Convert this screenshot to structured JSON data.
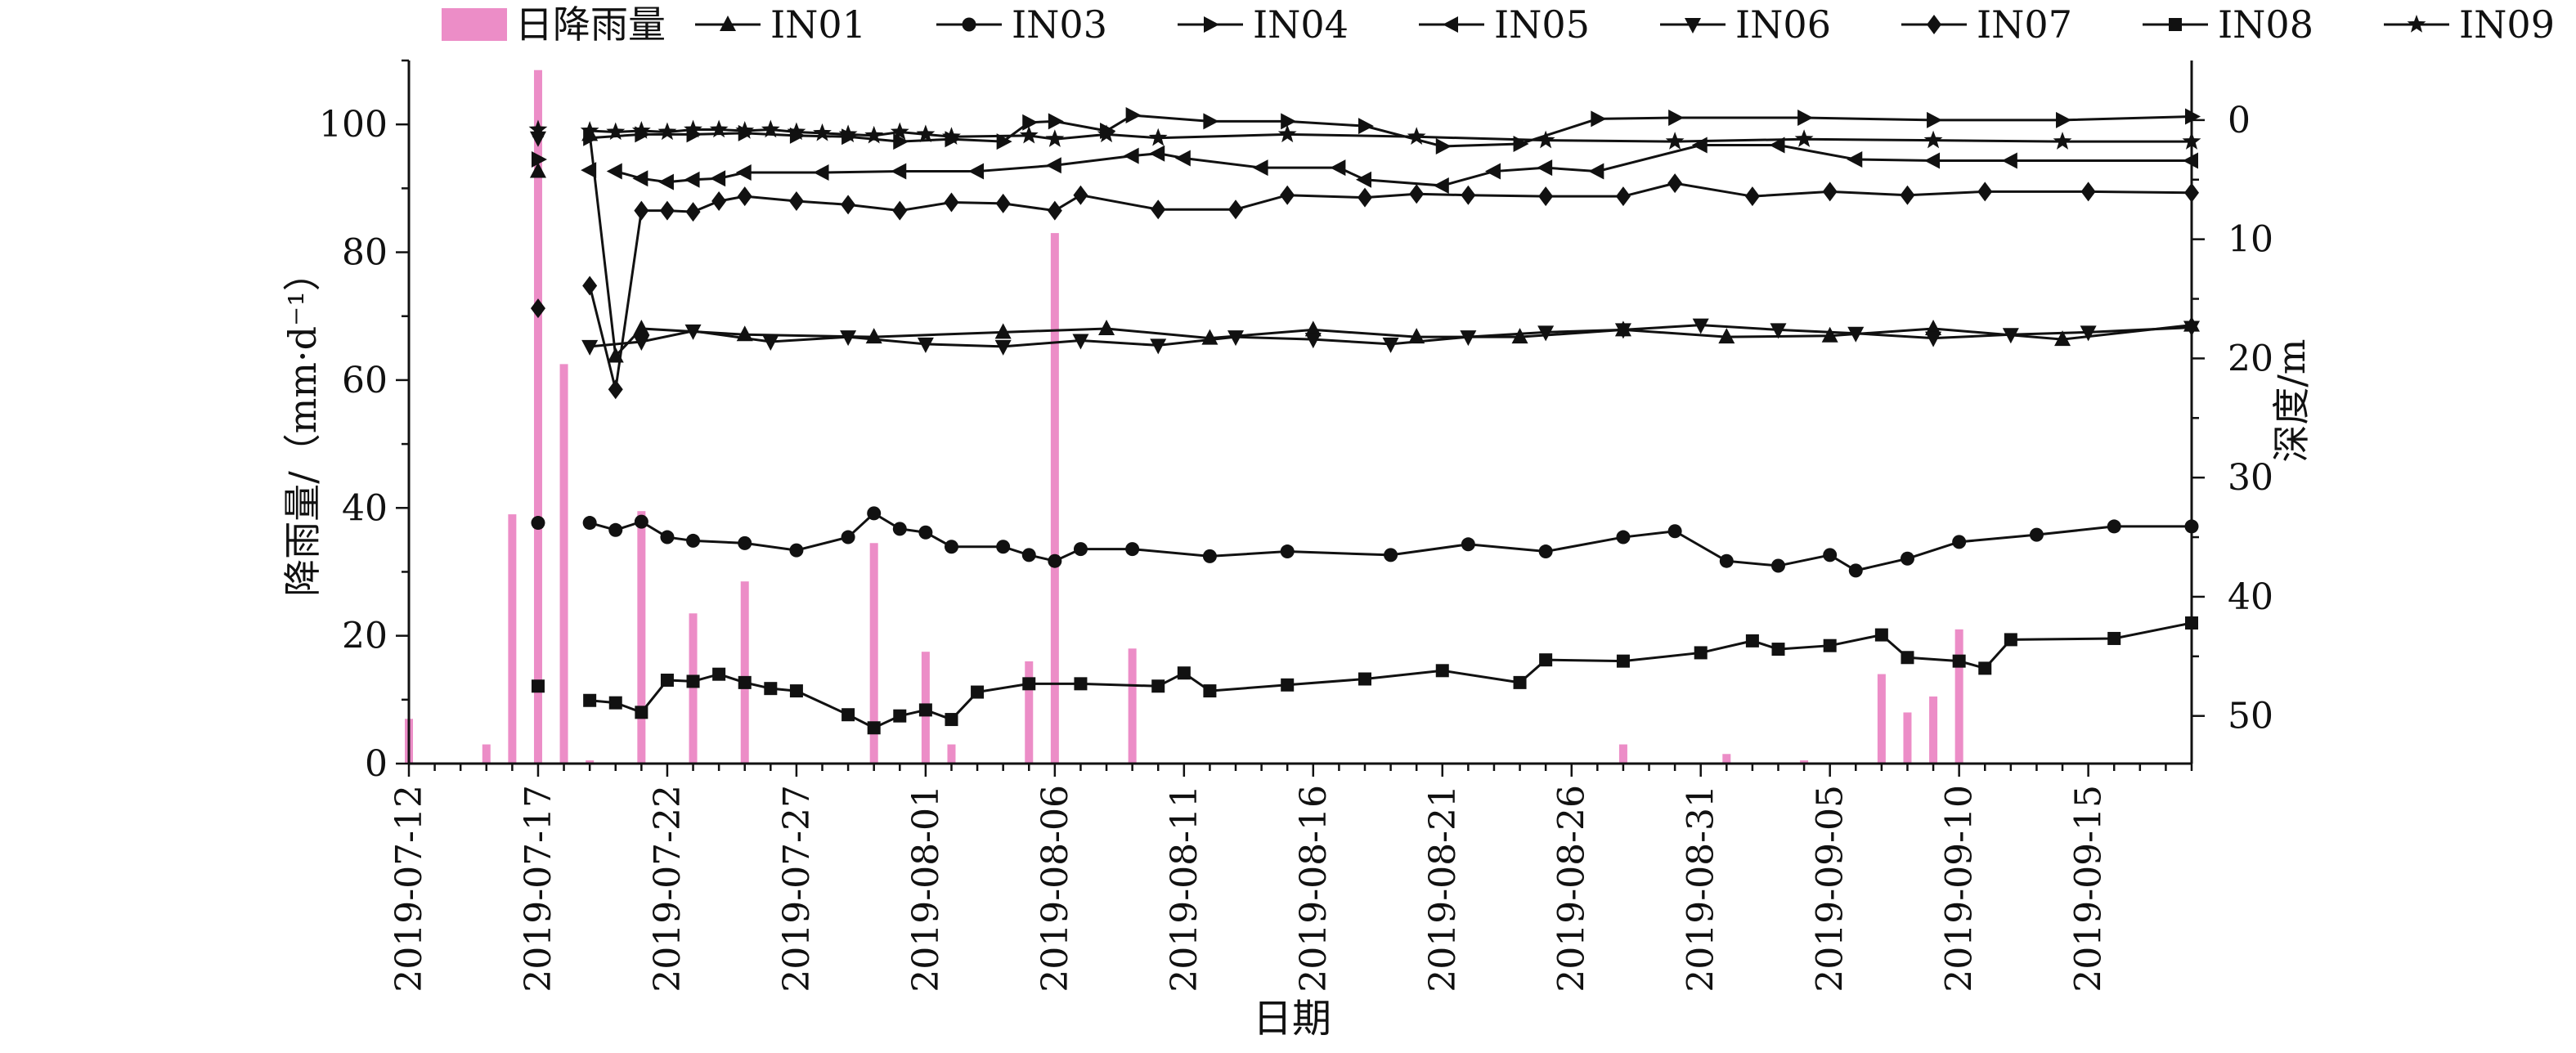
{
  "chart_data": {
    "type": "bar+line",
    "title": "",
    "xlabel": "日期",
    "ylabel_left": "降雨量/（mm·d⁻¹）",
    "ylabel_right": "深度/m",
    "x_start": "2019-07-12",
    "x_end": "2019-09-19",
    "x_tick_labels": [
      "2019-07-12",
      "2019-07-17",
      "2019-07-22",
      "2019-07-27",
      "2019-08-01",
      "2019-08-06",
      "2019-08-11",
      "2019-08-16",
      "2019-08-21",
      "2019-08-26",
      "2019-08-31",
      "2019-09-05",
      "2019-09-10",
      "2019-09-15"
    ],
    "ylim_left": [
      0,
      110
    ],
    "yticks_left": [
      0,
      20,
      40,
      60,
      80,
      100
    ],
    "ylim_right_inverted": [
      -5,
      54
    ],
    "yticks_right": [
      0,
      10,
      20,
      30,
      40,
      50
    ],
    "grid": false,
    "legend_placement": "top",
    "legend": [
      "日降雨量",
      "IN01",
      "IN03",
      "IN04",
      "IN05",
      "IN06",
      "IN07",
      "IN08",
      "IN09"
    ],
    "rain_color": "#ec8dc7",
    "line_color": "#111111",
    "rainfall": {
      "name": "日降雨量",
      "dates": [
        "2019-07-12",
        "2019-07-15",
        "2019-07-16",
        "2019-07-17",
        "2019-07-18",
        "2019-07-19",
        "2019-07-21",
        "2019-07-23",
        "2019-07-25",
        "2019-07-30",
        "2019-08-01",
        "2019-08-02",
        "2019-08-05",
        "2019-08-06",
        "2019-08-09",
        "2019-08-28",
        "2019-09-01",
        "2019-09-04",
        "2019-09-07",
        "2019-09-08",
        "2019-09-09",
        "2019-09-10"
      ],
      "values": [
        7,
        3,
        39,
        108.5,
        62.5,
        0.5,
        39.5,
        23.5,
        28.5,
        34.5,
        17.5,
        3,
        16,
        83,
        18,
        3,
        1.5,
        0.5,
        14,
        8,
        10.5,
        21
      ]
    },
    "series": [
      {
        "name": "IN09",
        "marker": "star",
        "dates": [
          "2019-07-17",
          "2019-07-19",
          "2019-07-20",
          "2019-07-21",
          "2019-07-22",
          "2019-07-23",
          "2019-07-24",
          "2019-07-25",
          "2019-07-26",
          "2019-07-27",
          "2019-07-28",
          "2019-07-29",
          "2019-07-30",
          "2019-07-31",
          "2019-08-01",
          "2019-08-02",
          "2019-08-05",
          "2019-08-06",
          "2019-08-08",
          "2019-08-10",
          "2019-08-15",
          "2019-08-20",
          "2019-08-25",
          "2019-08-30",
          "2019-09-04",
          "2019-09-09",
          "2019-09-14",
          "2019-09-19"
        ],
        "depth": [
          0.8,
          0.9,
          1.0,
          0.9,
          1.0,
          0.8,
          0.8,
          0.9,
          0.8,
          1.0,
          1.1,
          1.2,
          1.3,
          1.0,
          1.2,
          1.4,
          1.3,
          1.6,
          1.2,
          1.5,
          1.2,
          1.4,
          1.7,
          1.8,
          1.6,
          1.7,
          1.8,
          1.8
        ]
      },
      {
        "name": "IN04",
        "marker": "triangle-right",
        "dates": [
          "2019-07-17",
          "2019-07-19",
          "2019-07-21",
          "2019-07-23",
          "2019-07-25",
          "2019-07-27",
          "2019-07-29",
          "2019-07-31",
          "2019-08-02",
          "2019-08-04",
          "2019-08-05",
          "2019-08-06",
          "2019-08-08",
          "2019-08-09",
          "2019-08-12",
          "2019-08-15",
          "2019-08-18",
          "2019-08-21",
          "2019-08-24",
          "2019-08-27",
          "2019-08-30",
          "2019-09-04",
          "2019-09-09",
          "2019-09-14",
          "2019-09-19"
        ],
        "depth": [
          3.3,
          1.5,
          1.2,
          1.2,
          1.1,
          1.3,
          1.4,
          1.8,
          1.6,
          1.8,
          0.2,
          0.1,
          0.9,
          -0.4,
          0.1,
          0.1,
          0.5,
          2.2,
          2.0,
          -0.1,
          -0.2,
          -0.2,
          0.0,
          0.0,
          -0.3
        ]
      },
      {
        "name": "IN01",
        "marker": "triangle-up",
        "dates": [
          "2019-07-17",
          "2019-07-19",
          "2019-07-20",
          "2019-07-21",
          "2019-07-25",
          "2019-07-30",
          "2019-08-04",
          "2019-08-08",
          "2019-08-12",
          "2019-08-16",
          "2019-08-20",
          "2019-08-24",
          "2019-08-28",
          "2019-09-01",
          "2019-09-05",
          "2019-09-09",
          "2019-09-14",
          "2019-09-19"
        ],
        "depth": [
          4.3,
          1.2,
          19.8,
          17.5,
          18.0,
          18.2,
          17.8,
          17.5,
          18.3,
          17.6,
          18.2,
          18.2,
          17.6,
          18.2,
          18.1,
          17.5,
          18.4,
          17.2
        ]
      },
      {
        "name": "IN05",
        "marker": "triangle-left",
        "dates": [
          "2019-07-19",
          "2019-07-20",
          "2019-07-21",
          "2019-07-22",
          "2019-07-23",
          "2019-07-24",
          "2019-07-25",
          "2019-07-28",
          "2019-07-31",
          "2019-08-03",
          "2019-08-06",
          "2019-08-09",
          "2019-08-10",
          "2019-08-11",
          "2019-08-14",
          "2019-08-17",
          "2019-08-18",
          "2019-08-21",
          "2019-08-23",
          "2019-08-25",
          "2019-08-27",
          "2019-08-31",
          "2019-09-03",
          "2019-09-06",
          "2019-09-09",
          "2019-09-12",
          "2019-09-19"
        ],
        "depth": [
          4.2,
          4.3,
          4.9,
          5.2,
          5.0,
          4.9,
          4.4,
          4.4,
          4.3,
          4.3,
          3.8,
          3.0,
          2.8,
          3.2,
          4.0,
          4.0,
          5.0,
          5.5,
          4.3,
          4.0,
          4.3,
          2.1,
          2.1,
          3.3,
          3.4,
          3.4,
          3.4
        ]
      },
      {
        "name": "IN06",
        "marker": "triangle-down",
        "dates": [
          "2019-07-17",
          "2019-07-19",
          "2019-07-21",
          "2019-07-23",
          "2019-07-26",
          "2019-07-29",
          "2019-08-01",
          "2019-08-04",
          "2019-08-07",
          "2019-08-10",
          "2019-08-13",
          "2019-08-16",
          "2019-08-19",
          "2019-08-22",
          "2019-08-25",
          "2019-08-28",
          "2019-08-31",
          "2019-09-03",
          "2019-09-06",
          "2019-09-09",
          "2019-09-12",
          "2019-09-15",
          "2019-09-19"
        ],
        "depth": [
          1.5,
          19.0,
          18.6,
          17.7,
          18.6,
          18.2,
          18.8,
          19.0,
          18.5,
          18.9,
          18.2,
          18.4,
          18.8,
          18.2,
          17.8,
          17.6,
          17.2,
          17.6,
          17.9,
          18.3,
          18.0,
          17.8,
          17.4
        ]
      },
      {
        "name": "IN07",
        "marker": "diamond",
        "dates": [
          "2019-07-17",
          "2019-07-19",
          "2019-07-20",
          "2019-07-21",
          "2019-07-22",
          "2019-07-23",
          "2019-07-24",
          "2019-07-25",
          "2019-07-27",
          "2019-07-29",
          "2019-07-31",
          "2019-08-02",
          "2019-08-04",
          "2019-08-06",
          "2019-08-07",
          "2019-08-10",
          "2019-08-13",
          "2019-08-15",
          "2019-08-18",
          "2019-08-20",
          "2019-08-22",
          "2019-08-25",
          "2019-08-28",
          "2019-08-30",
          "2019-09-02",
          "2019-09-05",
          "2019-09-08",
          "2019-09-11",
          "2019-09-15",
          "2019-09-19"
        ],
        "depth": [
          15.8,
          13.9,
          22.6,
          7.6,
          7.6,
          7.7,
          6.8,
          6.4,
          6.8,
          7.1,
          7.6,
          6.9,
          7.0,
          7.6,
          6.3,
          7.5,
          7.5,
          6.3,
          6.5,
          6.2,
          6.3,
          6.4,
          6.4,
          5.3,
          6.4,
          6.0,
          6.3,
          6.0,
          6.0,
          6.1
        ]
      },
      {
        "name": "IN03",
        "marker": "circle",
        "dates": [
          "2019-07-17",
          "2019-07-19",
          "2019-07-20",
          "2019-07-21",
          "2019-07-22",
          "2019-07-23",
          "2019-07-25",
          "2019-07-27",
          "2019-07-29",
          "2019-07-30",
          "2019-07-31",
          "2019-08-01",
          "2019-08-02",
          "2019-08-04",
          "2019-08-05",
          "2019-08-06",
          "2019-08-07",
          "2019-08-09",
          "2019-08-12",
          "2019-08-15",
          "2019-08-19",
          "2019-08-22",
          "2019-08-25",
          "2019-08-28",
          "2019-08-30",
          "2019-09-01",
          "2019-09-03",
          "2019-09-05",
          "2019-09-06",
          "2019-09-08",
          "2019-09-10",
          "2019-09-13",
          "2019-09-16",
          "2019-09-19"
        ],
        "depth": [
          33.8,
          33.8,
          34.4,
          33.7,
          35.0,
          35.3,
          35.5,
          36.1,
          35.0,
          33.0,
          34.3,
          34.6,
          35.8,
          35.8,
          36.5,
          37.0,
          36.0,
          36.0,
          36.6,
          36.2,
          36.5,
          35.6,
          36.2,
          35.0,
          34.5,
          37.0,
          37.4,
          36.5,
          37.8,
          36.8,
          35.4,
          34.8,
          34.1,
          34.1
        ]
      },
      {
        "name": "IN08",
        "marker": "square",
        "dates": [
          "2019-07-17",
          "2019-07-19",
          "2019-07-20",
          "2019-07-21",
          "2019-07-22",
          "2019-07-23",
          "2019-07-24",
          "2019-07-25",
          "2019-07-26",
          "2019-07-27",
          "2019-07-29",
          "2019-07-30",
          "2019-07-31",
          "2019-08-01",
          "2019-08-02",
          "2019-08-03",
          "2019-08-05",
          "2019-08-07",
          "2019-08-10",
          "2019-08-11",
          "2019-08-12",
          "2019-08-15",
          "2019-08-18",
          "2019-08-21",
          "2019-08-24",
          "2019-08-25",
          "2019-08-28",
          "2019-08-31",
          "2019-09-02",
          "2019-09-03",
          "2019-09-05",
          "2019-09-07",
          "2019-09-08",
          "2019-09-10",
          "2019-09-11",
          "2019-09-12",
          "2019-09-16",
          "2019-09-19"
        ],
        "depth": [
          47.5,
          48.7,
          48.9,
          49.7,
          47.0,
          47.1,
          46.5,
          47.2,
          47.7,
          47.9,
          49.9,
          51.0,
          50.0,
          49.5,
          50.3,
          48.0,
          47.3,
          47.3,
          47.5,
          46.4,
          47.9,
          47.4,
          46.9,
          46.2,
          47.2,
          45.3,
          45.4,
          44.7,
          43.7,
          44.4,
          44.1,
          43.2,
          45.1,
          45.4,
          46.0,
          43.6,
          43.5,
          42.2
        ]
      }
    ]
  }
}
